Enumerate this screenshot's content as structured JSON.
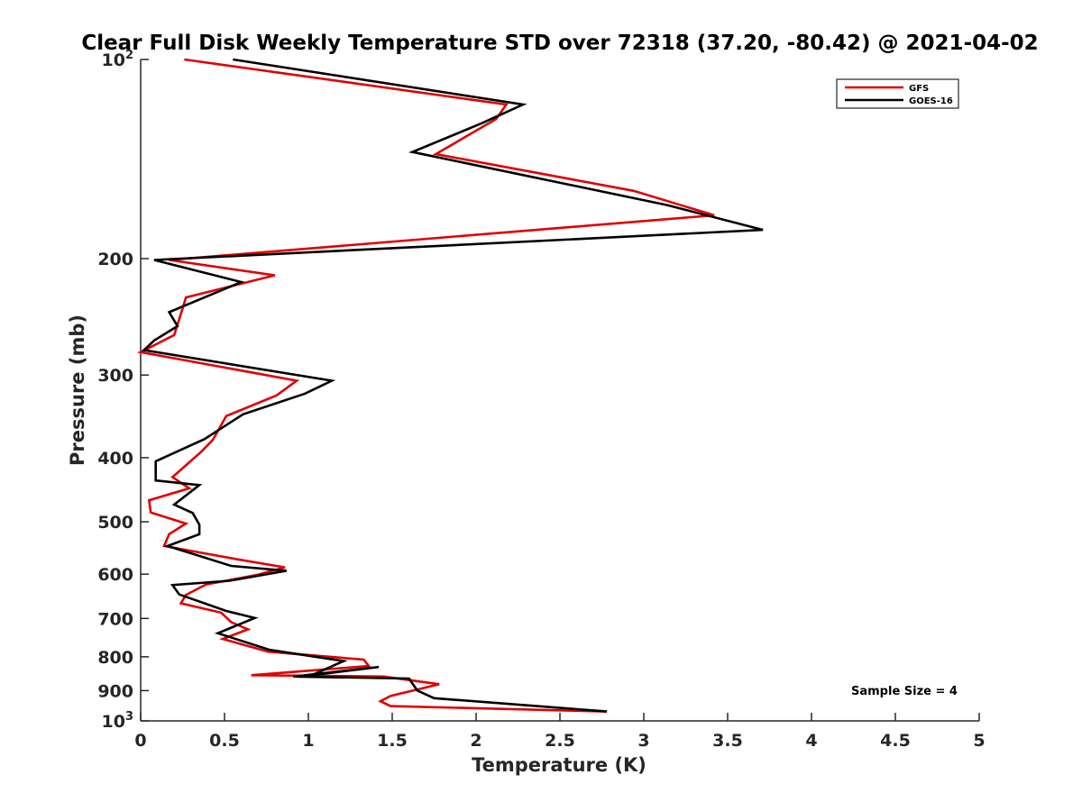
{
  "chart_data": {
    "type": "line",
    "title": "Clear Full Disk Weekly Temperature STD over 72318 (37.20, -80.42) @ 2021-04-02",
    "xlabel": "Temperature (K)",
    "ylabel": "Pressure (mb)",
    "xlim": [
      0,
      5
    ],
    "ylim": [
      100,
      1000
    ],
    "y_scale": "log",
    "y_reversed": true,
    "x_ticks": [
      "0",
      "0.5",
      "1",
      "1.5",
      "2",
      "2.5",
      "3",
      "3.5",
      "4",
      "4.5",
      "5"
    ],
    "y_ticks": [
      {
        "value": 100,
        "base": "10",
        "exp": "2"
      },
      {
        "value": 200,
        "label": "200"
      },
      {
        "value": 300,
        "label": "300"
      },
      {
        "value": 400,
        "label": "400"
      },
      {
        "value": 500,
        "label": "500"
      },
      {
        "value": 600,
        "label": "600"
      },
      {
        "value": 700,
        "label": "700"
      },
      {
        "value": 800,
        "label": "800"
      },
      {
        "value": 900,
        "label": "900"
      },
      {
        "value": 1000,
        "base": "10",
        "exp": "3"
      }
    ],
    "grid": false,
    "legend_position": "top-right",
    "annotation": "Sample Size = 4",
    "series": [
      {
        "name": "GFS",
        "color": "#e00000",
        "x": [
          0.26,
          2.18,
          2.12,
          1.76,
          2.94,
          3.42,
          0.17,
          0.8,
          0.27,
          0.25,
          0.2,
          0.0,
          0.93,
          0.81,
          0.51,
          0.43,
          0.36,
          0.19,
          0.29,
          0.05,
          0.06,
          0.27,
          0.17,
          0.14,
          0.58,
          0.86,
          0.69,
          0.39,
          0.27,
          0.24,
          0.48,
          0.54,
          0.64,
          0.49,
          0.76,
          1.33,
          1.36,
          0.66,
          1.45,
          1.78,
          1.49,
          1.43,
          1.49,
          2.78
        ],
        "y": [
          100,
          117,
          123,
          139,
          158,
          172,
          201,
          212,
          229,
          238,
          261,
          277,
          306,
          322,
          346,
          376,
          392,
          428,
          445,
          464,
          484,
          503,
          522,
          544,
          570,
          586,
          602,
          622,
          645,
          664,
          686,
          709,
          727,
          752,
          786,
          808,
          826,
          853,
          857,
          880,
          917,
          934,
          950,
          968
        ]
      },
      {
        "name": "GOES-16",
        "color": "#000000",
        "x": [
          0.55,
          2.28,
          2.03,
          1.62,
          3.14,
          3.71,
          0.08,
          0.6,
          0.17,
          0.22,
          0.08,
          0.02,
          1.14,
          0.98,
          0.61,
          0.38,
          0.09,
          0.09,
          0.35,
          0.2,
          0.31,
          0.35,
          0.35,
          0.16,
          0.54,
          0.87,
          0.53,
          0.19,
          0.23,
          0.51,
          0.68,
          0.46,
          0.77,
          1.21,
          1.02,
          1.42,
          0.91,
          1.6,
          1.65,
          1.75,
          2.78
        ],
        "y": [
          100,
          117,
          125,
          138,
          166,
          181,
          201,
          217,
          241,
          253,
          266,
          275,
          306,
          320,
          344,
          375,
          405,
          433,
          440,
          471,
          485,
          505,
          522,
          544,
          583,
          593,
          614,
          623,
          644,
          682,
          699,
          737,
          781,
          812,
          853,
          829,
          857,
          863,
          900,
          924,
          968
        ]
      }
    ]
  }
}
